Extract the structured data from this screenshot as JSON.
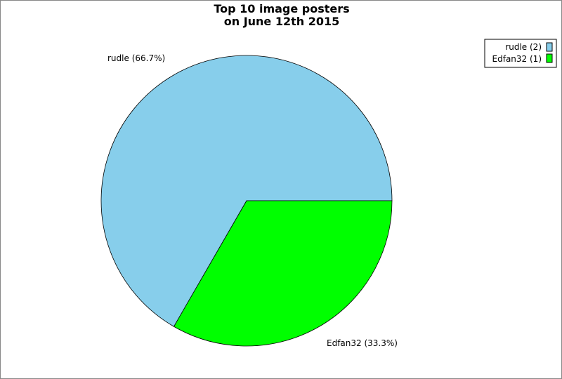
{
  "chart_data": {
    "type": "pie",
    "title": [
      "Top 10 image posters",
      "on June 12th 2015"
    ],
    "slices": [
      {
        "name": "rudle",
        "value": 2,
        "percent": 66.7,
        "label": "rudle (66.7%)",
        "legend": "rudle (2)",
        "color": "#87ceeb"
      },
      {
        "name": "Edfan32",
        "value": 1,
        "percent": 33.3,
        "label": "Edfan32 (33.3%)",
        "legend": "Edfan32 (1)",
        "color": "#00ff00"
      }
    ],
    "legend_position": "top-right"
  }
}
